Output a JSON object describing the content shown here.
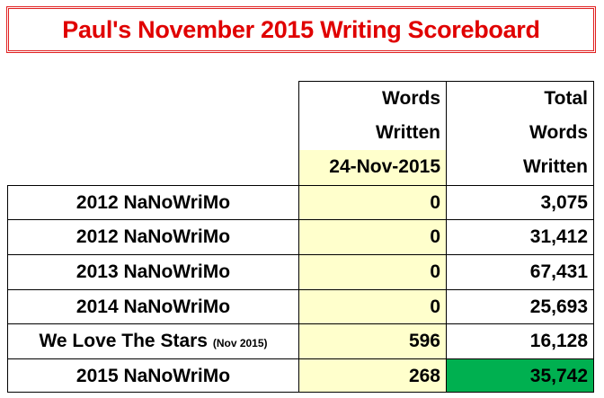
{
  "title": "Paul's November 2015 Writing Scoreboard",
  "headers": {
    "col2": [
      "Words",
      "Written",
      "24-Nov-2015"
    ],
    "col3": [
      "Total",
      "Words",
      "Written"
    ]
  },
  "rows": [
    {
      "name": "2012 NaNoWriMo",
      "note": "",
      "today": "0",
      "total": "3,075"
    },
    {
      "name": "2012 NaNoWriMo",
      "note": "",
      "today": "0",
      "total": "31,412"
    },
    {
      "name": "2013 NaNoWriMo",
      "note": "",
      "today": "0",
      "total": "67,431"
    },
    {
      "name": "2014 NaNoWriMo",
      "note": "",
      "today": "0",
      "total": "25,693"
    },
    {
      "name": "We Love The Stars",
      "note": "(Nov 2015)",
      "today": "596",
      "total": "16,128"
    },
    {
      "name": "2015 NaNoWriMo",
      "note": "",
      "today": "268",
      "total": "35,742"
    }
  ],
  "colors": {
    "title": "#e00000",
    "highlight_yellow": "#ffffcc",
    "highlight_green": "#00b050"
  }
}
